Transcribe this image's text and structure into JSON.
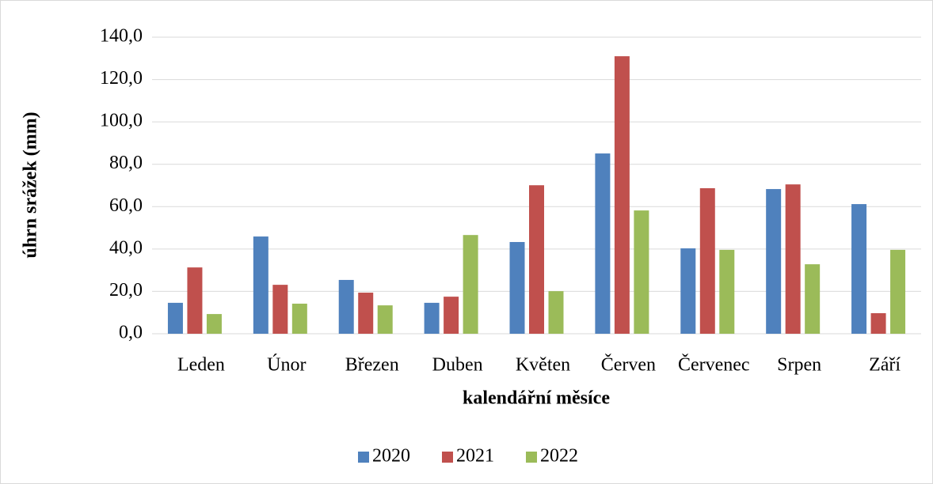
{
  "chart_data": {
    "type": "bar",
    "categories": [
      "Leden",
      "Únor",
      "Březen",
      "Duben",
      "Květen",
      "Červen",
      "Červenec",
      "Srpen",
      "Září"
    ],
    "series": [
      {
        "name": "2020",
        "color": "#4f81bd",
        "values": [
          14.6,
          45.9,
          25.4,
          14.6,
          43.3,
          85.1,
          40.3,
          68.3,
          61.2
        ]
      },
      {
        "name": "2021",
        "color": "#c0504d",
        "values": [
          31.3,
          23.1,
          19.4,
          17.5,
          70.1,
          131.0,
          68.7,
          70.5,
          9.7
        ]
      },
      {
        "name": "2022",
        "color": "#9bbb59",
        "values": [
          9.3,
          14.2,
          13.4,
          46.6,
          20.1,
          58.2,
          39.6,
          32.8,
          39.6
        ]
      }
    ],
    "ylabel": "úhrn srážek (mm)",
    "xlabel": "kalendářní měsíce",
    "ylim": [
      0,
      140
    ],
    "yticks": [
      {
        "value": 0,
        "label": "0,0"
      },
      {
        "value": 20,
        "label": "20,0"
      },
      {
        "value": 40,
        "label": "40,0"
      },
      {
        "value": 60,
        "label": "60,0"
      },
      {
        "value": 80,
        "label": "80,0"
      },
      {
        "value": 100,
        "label": "100,0"
      },
      {
        "value": 120,
        "label": "120,0"
      },
      {
        "value": 140,
        "label": "140,0"
      }
    ],
    "grid": true,
    "legend": "bottom"
  }
}
